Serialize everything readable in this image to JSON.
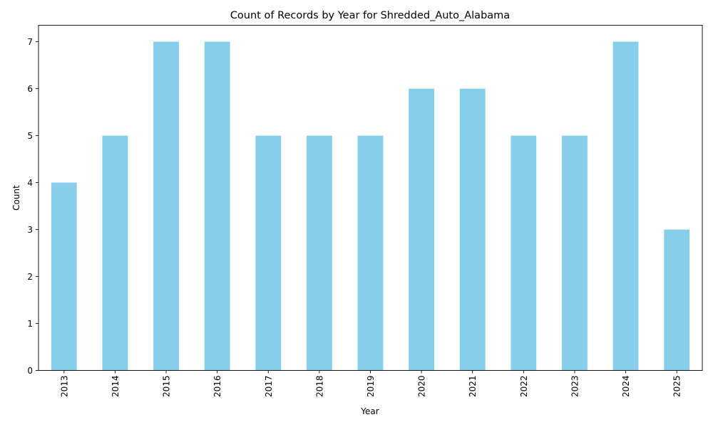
{
  "chart_data": {
    "type": "bar",
    "title": "Count of Records by Year for Shredded_Auto_Alabama",
    "xlabel": "Year",
    "ylabel": "Count",
    "categories": [
      "2013",
      "2014",
      "2015",
      "2016",
      "2017",
      "2018",
      "2019",
      "2020",
      "2021",
      "2022",
      "2023",
      "2024",
      "2025"
    ],
    "values": [
      4,
      5,
      7,
      7,
      5,
      5,
      5,
      6,
      6,
      5,
      5,
      7,
      3
    ],
    "ylim": [
      0,
      7.35
    ],
    "yticks": [
      "0",
      "1",
      "2",
      "3",
      "4",
      "5",
      "6",
      "7"
    ],
    "bar_color": "#87ceeb",
    "grid": false,
    "legend": false
  }
}
